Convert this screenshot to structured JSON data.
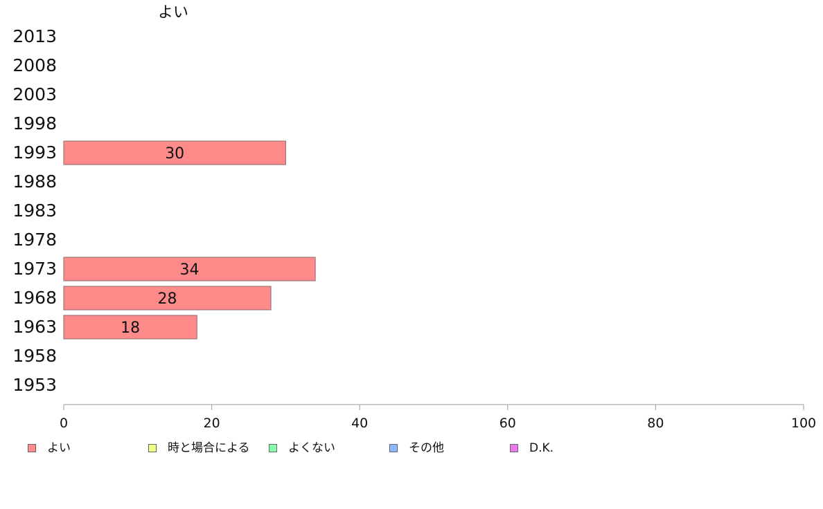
{
  "chart_data": {
    "type": "bar",
    "orientation": "horizontal",
    "title": "よい",
    "categories": [
      "2013",
      "2008",
      "2003",
      "1998",
      "1993",
      "1988",
      "1983",
      "1978",
      "1973",
      "1968",
      "1963",
      "1958",
      "1953"
    ],
    "series": [
      {
        "name": "よい",
        "values": [
          null,
          null,
          null,
          null,
          30,
          null,
          null,
          null,
          34,
          28,
          18,
          null,
          null
        ],
        "color": "#ff8a8a"
      }
    ],
    "data_labels": [
      "",
      "",
      "",
      "",
      "30",
      "",
      "",
      "",
      "34",
      "28",
      "18",
      "",
      ""
    ],
    "xlim": [
      0,
      100
    ],
    "x_ticks": [
      0,
      20,
      40,
      60,
      80,
      100
    ],
    "grid": false,
    "legend_position": "bottom",
    "legend": [
      {
        "label": "よい",
        "color": "#ff8a8a"
      },
      {
        "label": "時と場合による",
        "color": "#eeff88"
      },
      {
        "label": "よくない",
        "color": "#88ffaa"
      },
      {
        "label": "その他",
        "color": "#88b8ff"
      },
      {
        "label": "D.K.",
        "color": "#ee77ee"
      }
    ]
  }
}
